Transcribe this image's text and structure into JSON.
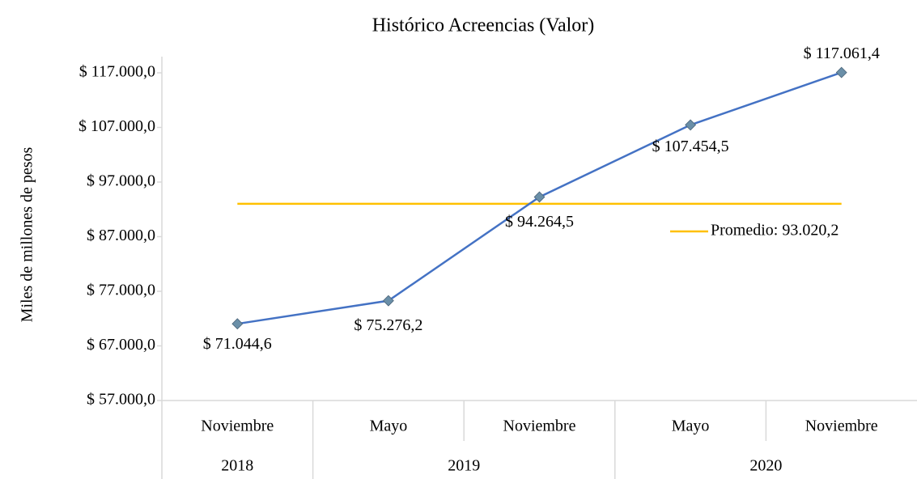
{
  "chart_data": {
    "type": "line",
    "title": "Histórico Acreencias (Valor)",
    "y_axis_label": "Miles de millones de pesos",
    "categories": [
      "Noviembre",
      "Mayo",
      "Noviembre",
      "Mayo",
      "Noviembre"
    ],
    "category_groups": [
      {
        "label": "2018",
        "span": 1
      },
      {
        "label": "2019",
        "span": 2
      },
      {
        "label": "2020",
        "span": 2
      }
    ],
    "series": [
      {
        "color": "#4472c4",
        "marker_color": "#6a8fa8",
        "values": [
          71044.6,
          75276.2,
          94264.5,
          107454.5,
          117061.4
        ],
        "value_labels": [
          "$ 71.044,6",
          "$ 75.276,2",
          "$ 94.264,5",
          "$ 107.454,5",
          "$ 117.061,4"
        ]
      }
    ],
    "average": {
      "label": "Promedio: 93.020,2",
      "value": 93020.2,
      "color": "#ffc000"
    },
    "ylim": [
      57000,
      117000
    ],
    "yticks": [
      {
        "value": 57000,
        "label": "$ 57.000,0"
      },
      {
        "value": 67000,
        "label": "$ 67.000,0"
      },
      {
        "value": 77000,
        "label": "$ 77.000,0"
      },
      {
        "value": 87000,
        "label": "$ 87.000,0"
      },
      {
        "value": 97000,
        "label": "$ 97.000,0"
      },
      {
        "value": 107000,
        "label": "$ 107.000,0"
      },
      {
        "value": 117000,
        "label": "$ 117.000,0"
      }
    ],
    "grid": false
  }
}
